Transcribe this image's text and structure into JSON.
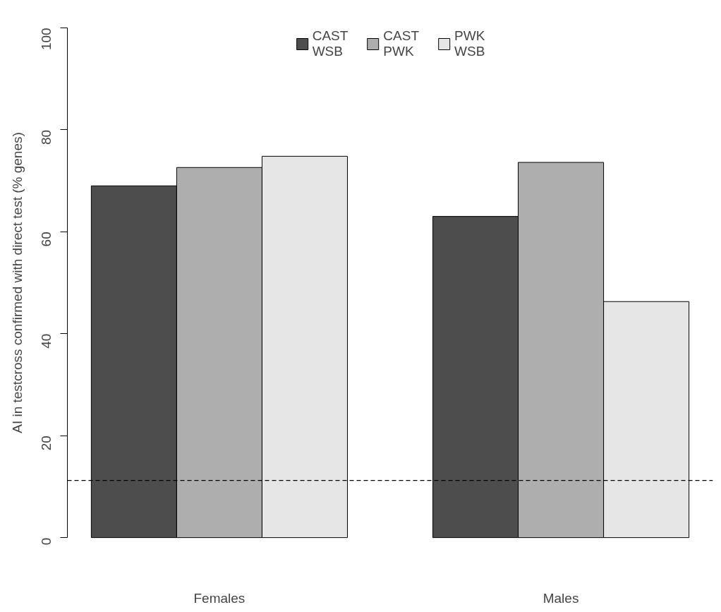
{
  "chart_data": {
    "type": "bar",
    "ylabel": "AI in testcross confirmed with direct test (% genes)",
    "categories": [
      "Females",
      "Males"
    ],
    "series": [
      {
        "name": "CAST\nWSB",
        "color": "#4d4d4d",
        "values": [
          69.0,
          63.0
        ]
      },
      {
        "name": "CAST\nPWK",
        "color": "#aeaeae",
        "values": [
          72.6,
          73.6
        ]
      },
      {
        "name": "PWK\nWSB",
        "color": "#e6e6e6",
        "values": [
          74.8,
          46.3
        ]
      }
    ],
    "ylim": [
      0,
      100
    ],
    "yticks": [
      0,
      20,
      40,
      60,
      80,
      100
    ],
    "grid": false,
    "legend": "top",
    "ref_lines": [
      {
        "axis": "y",
        "value": 11.2,
        "color": "#000000",
        "line_style": "dashed"
      }
    ]
  }
}
